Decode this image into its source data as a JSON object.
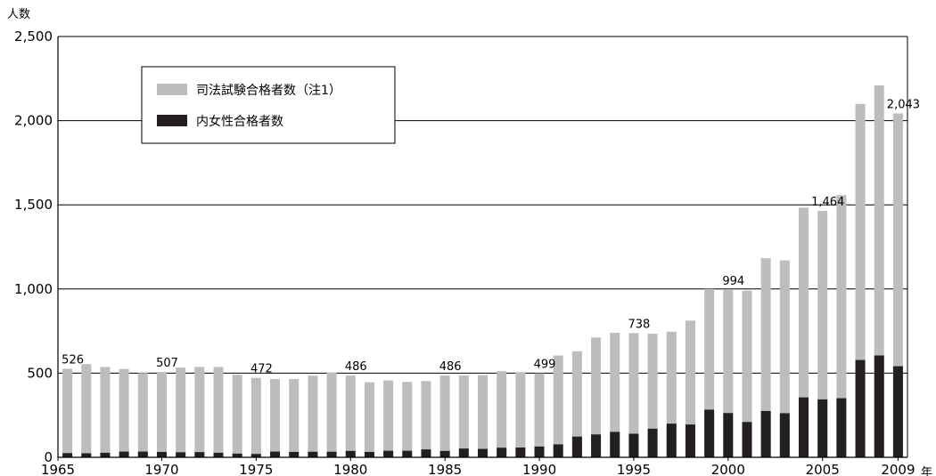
{
  "chart_data": {
    "type": "bar",
    "title": "",
    "ylabel": "人数",
    "xlabel": "年",
    "ylim": [
      0,
      2500
    ],
    "yticks": [
      "0",
      "500",
      "1,000",
      "1,500",
      "2,000",
      "2,500"
    ],
    "xticks": [
      "1965",
      "1970",
      "1975",
      "1980",
      "1985",
      "1990",
      "1995",
      "2000",
      "2005",
      "2009"
    ],
    "grid": true,
    "legend_position": "top-left",
    "categories": [
      1965,
      1966,
      1967,
      1968,
      1969,
      1970,
      1971,
      1972,
      1973,
      1974,
      1975,
      1976,
      1977,
      1978,
      1979,
      1980,
      1981,
      1982,
      1983,
      1984,
      1985,
      1986,
      1987,
      1988,
      1989,
      1990,
      1991,
      1992,
      1993,
      1994,
      1995,
      1996,
      1997,
      1998,
      1999,
      2000,
      2001,
      2002,
      2003,
      2004,
      2005,
      2006,
      2007,
      2008,
      2009
    ],
    "series": [
      {
        "name": "司法試験合格者数（注1）",
        "color": "#bdbdbe",
        "values": [
          526,
          554,
          537,
          525,
          501,
          507,
          533,
          537,
          537,
          491,
          472,
          465,
          465,
          485,
          503,
          486,
          446,
          457,
          448,
          453,
          486,
          486,
          489,
          512,
          506,
          499,
          605,
          630,
          712,
          740,
          738,
          734,
          746,
          812,
          1000,
          994,
          990,
          1183,
          1170,
          1483,
          1464,
          1558,
          2099,
          2209,
          2043
        ]
      },
      {
        "name": "内女性合格者数",
        "color": "#231f20",
        "values": [
          25,
          24,
          27,
          34,
          34,
          32,
          30,
          31,
          27,
          22,
          20,
          34,
          32,
          33,
          33,
          38,
          32,
          39,
          39,
          47,
          38,
          52,
          50,
          57,
          58,
          64,
          77,
          123,
          136,
          151,
          140,
          170,
          200,
          195,
          283,
          263,
          210,
          275,
          262,
          356,
          344,
          351,
          578,
          605,
          541
        ]
      }
    ],
    "data_labels": [
      {
        "year": 1965,
        "text": "526"
      },
      {
        "year": 1970,
        "text": "507"
      },
      {
        "year": 1975,
        "text": "472"
      },
      {
        "year": 1980,
        "text": "486"
      },
      {
        "year": 1985,
        "text": "486"
      },
      {
        "year": 1990,
        "text": "499"
      },
      {
        "year": 1995,
        "text": "738"
      },
      {
        "year": 2000,
        "text": "994"
      },
      {
        "year": 2005,
        "text": "1,464"
      },
      {
        "year": 2009,
        "text": "2,043"
      }
    ]
  }
}
